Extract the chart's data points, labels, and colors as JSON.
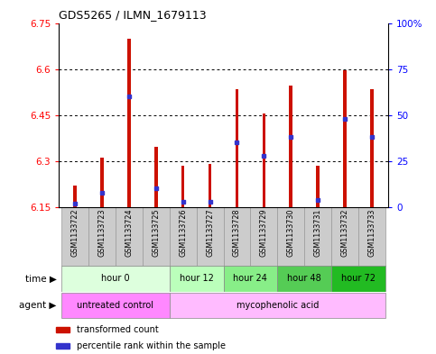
{
  "title": "GDS5265 / ILMN_1679113",
  "samples": [
    "GSM1133722",
    "GSM1133723",
    "GSM1133724",
    "GSM1133725",
    "GSM1133726",
    "GSM1133727",
    "GSM1133728",
    "GSM1133729",
    "GSM1133730",
    "GSM1133731",
    "GSM1133732",
    "GSM1133733"
  ],
  "bar_values": [
    6.22,
    6.31,
    6.7,
    6.345,
    6.285,
    6.29,
    6.535,
    6.455,
    6.545,
    6.285,
    6.595,
    6.535
  ],
  "percentile_values": [
    2,
    8,
    60,
    10,
    3,
    3,
    35,
    28,
    38,
    4,
    48,
    38
  ],
  "bar_bottom": 6.15,
  "ylim": [
    6.15,
    6.75
  ],
  "ylim_right": [
    0,
    100
  ],
  "yticks_left": [
    6.15,
    6.3,
    6.45,
    6.6,
    6.75
  ],
  "yticks_right": [
    0,
    25,
    50,
    75,
    100
  ],
  "ytick_labels_right": [
    "0",
    "25",
    "50",
    "75",
    "100%"
  ],
  "bar_color": "#cc1100",
  "blue_color": "#3333cc",
  "time_groups": [
    {
      "label": "hour 0",
      "indices": [
        0,
        1,
        2,
        3
      ],
      "color": "#ddffdd"
    },
    {
      "label": "hour 12",
      "indices": [
        4,
        5
      ],
      "color": "#bbffbb"
    },
    {
      "label": "hour 24",
      "indices": [
        6,
        7
      ],
      "color": "#88ee88"
    },
    {
      "label": "hour 48",
      "indices": [
        8,
        9
      ],
      "color": "#55cc55"
    },
    {
      "label": "hour 72",
      "indices": [
        10,
        11
      ],
      "color": "#22bb22"
    }
  ],
  "agent_groups": [
    {
      "label": "untreated control",
      "indices": [
        0,
        1,
        2,
        3
      ],
      "color": "#ff88ff"
    },
    {
      "label": "mycophenolic acid",
      "indices": [
        4,
        5,
        6,
        7,
        8,
        9,
        10,
        11
      ],
      "color": "#ffbbff"
    }
  ],
  "legend_bar_color": "#cc1100",
  "legend_blue_color": "#3333cc",
  "legend_text1": "transformed count",
  "legend_text2": "percentile rank within the sample",
  "bar_width": 0.12,
  "col_bg_color": "#cccccc",
  "col_border_color": "#999999"
}
